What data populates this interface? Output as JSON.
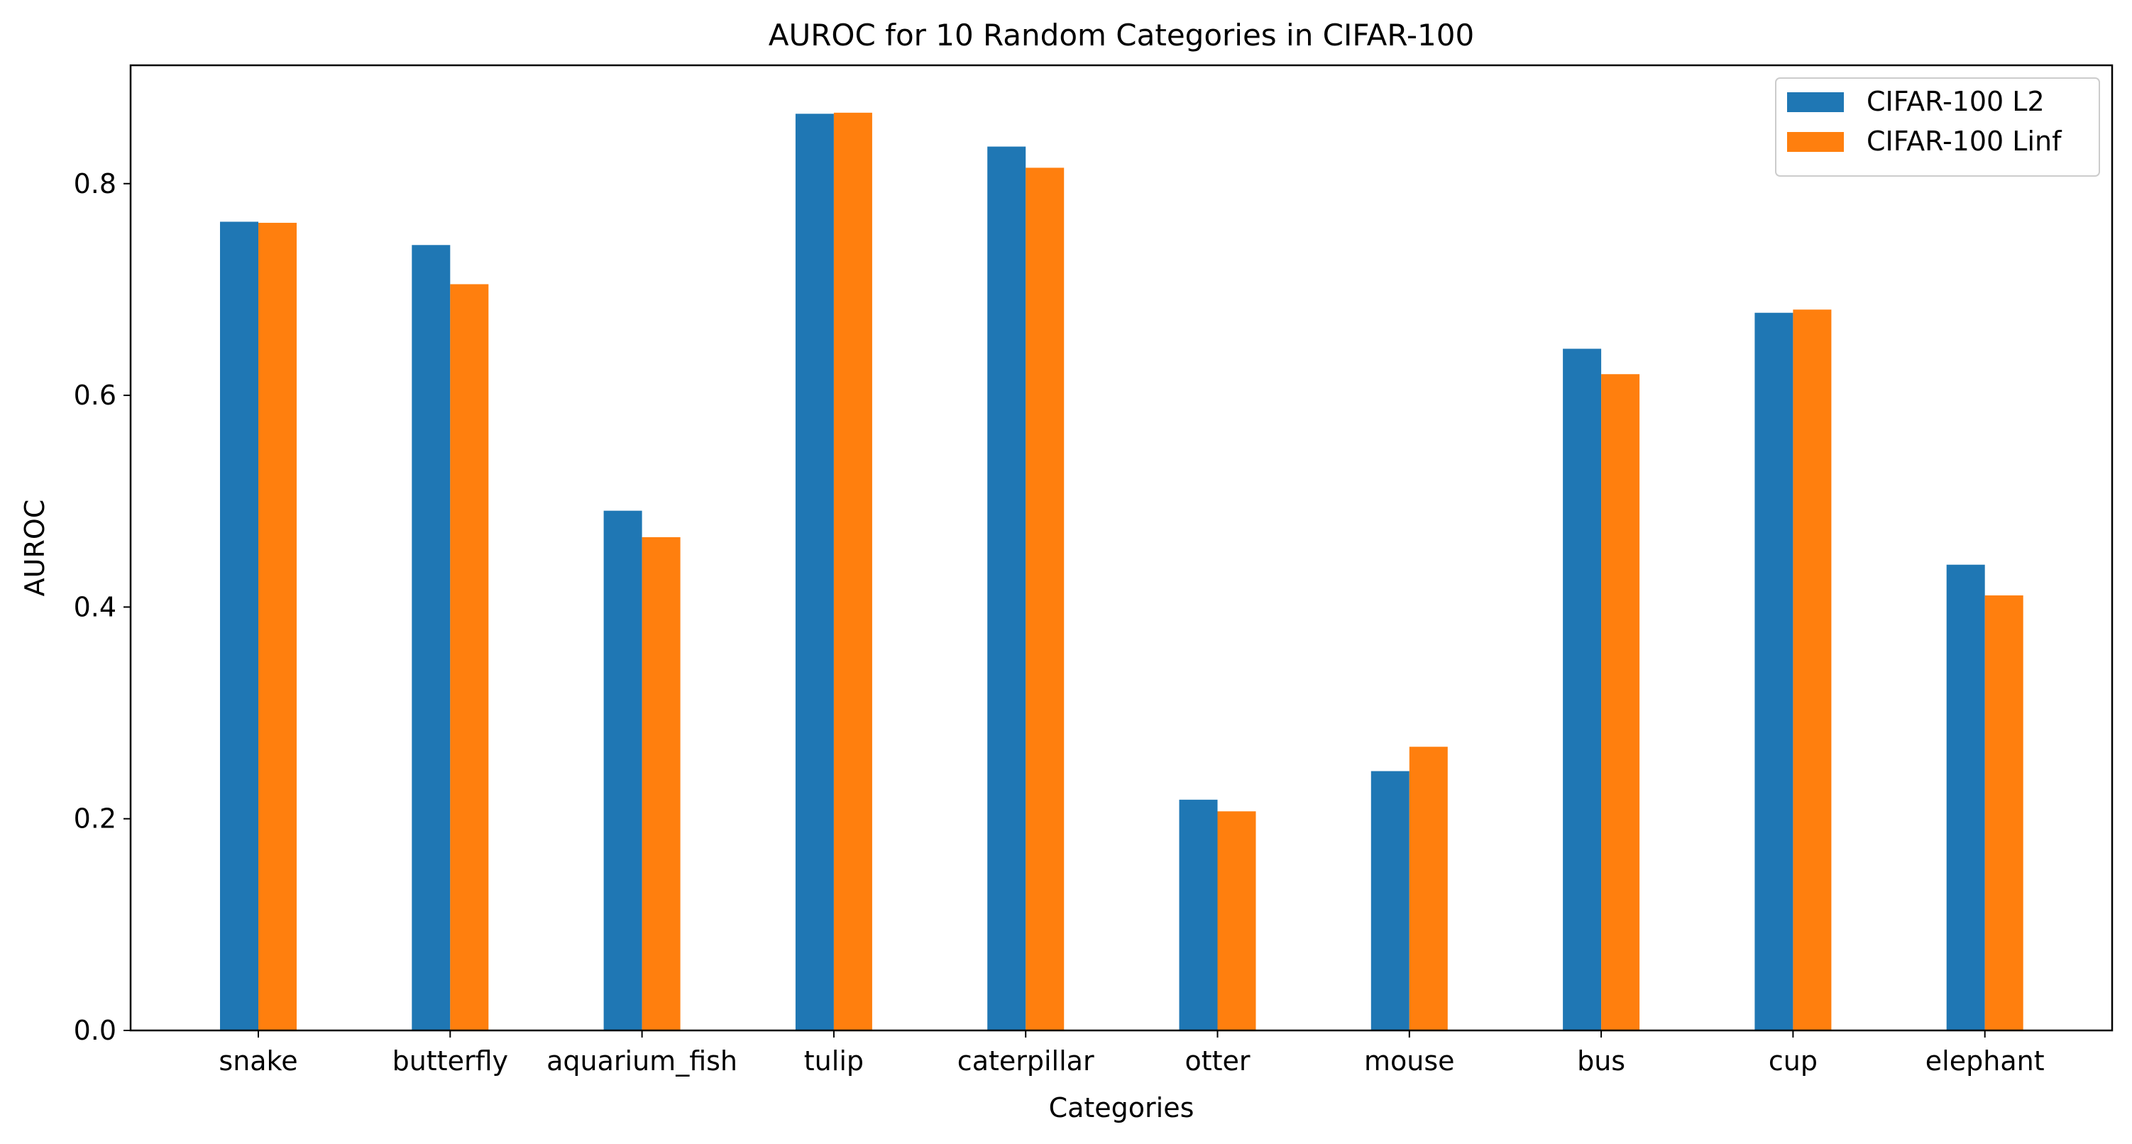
{
  "chart_data": {
    "type": "bar",
    "title": "AUROC for 10 Random Categories in CIFAR-100",
    "xlabel": "Categories",
    "ylabel": "AUROC",
    "categories": [
      "snake",
      "butterfly",
      "aquarium_fish",
      "tulip",
      "caterpillar",
      "otter",
      "mouse",
      "bus",
      "cup",
      "elephant"
    ],
    "series": [
      {
        "name": "CIFAR-100 L2",
        "color": "#1f77b4",
        "values": [
          0.764,
          0.742,
          0.491,
          0.866,
          0.835,
          0.218,
          0.245,
          0.644,
          0.678,
          0.44
        ]
      },
      {
        "name": "CIFAR-100 Linf",
        "color": "#ff7f0e",
        "values": [
          0.763,
          0.705,
          0.466,
          0.867,
          0.815,
          0.207,
          0.268,
          0.62,
          0.681,
          0.411
        ]
      }
    ],
    "ylim": [
      0,
      0.9118
    ],
    "yticks": [
      "0.0",
      "0.2",
      "0.4",
      "0.6",
      "0.8"
    ],
    "grid": false,
    "legend_position": "top-right"
  }
}
